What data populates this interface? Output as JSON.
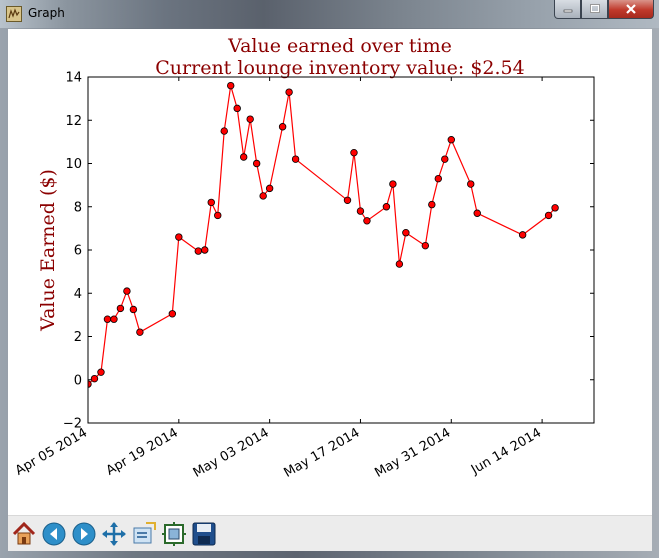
{
  "window": {
    "title": "Graph",
    "app_icon": "matplotlib-figure-icon",
    "buttons": [
      "minimize-icon",
      "maximize-icon",
      "close-icon"
    ]
  },
  "toolbar": {
    "buttons": [
      {
        "name": "home-button",
        "icon": "home-icon"
      },
      {
        "name": "back-button",
        "icon": "arrow-left-icon"
      },
      {
        "name": "forward-button",
        "icon": "arrow-right-icon"
      },
      {
        "name": "pan-button",
        "icon": "move-arrows-icon"
      },
      {
        "name": "zoom-button",
        "icon": "zoom-rect-icon"
      },
      {
        "name": "subplots-button",
        "icon": "subplots-icon"
      },
      {
        "name": "save-button",
        "icon": "floppy-disk-icon"
      }
    ]
  },
  "chart_data": {
    "type": "line",
    "title": "Value earned over time",
    "subtitle": "Current lounge inventory value: $2.54",
    "xlabel": "",
    "ylabel": "Value Earned ($)",
    "title_color": "#8b0000",
    "line_color": "#ff0000",
    "marker_color": "#ff0000",
    "xlim": [
      "2014-04-05",
      "2014-06-22"
    ],
    "ylim": [
      -2,
      14
    ],
    "yticks": [
      -2,
      0,
      2,
      4,
      6,
      8,
      10,
      12,
      14
    ],
    "xticks": [
      "2014-04-05",
      "2014-04-19",
      "2014-05-03",
      "2014-05-17",
      "2014-05-31",
      "2014-06-14"
    ],
    "xtick_labels": [
      "Apr 05 2014",
      "Apr 19 2014",
      "May 03 2014",
      "May 17 2014",
      "May 31 2014",
      "Jun 14 2014"
    ],
    "grid": false,
    "x": [
      "2014-04-05",
      "2014-04-06",
      "2014-04-07",
      "2014-04-08",
      "2014-04-09",
      "2014-04-10",
      "2014-04-11",
      "2014-04-12",
      "2014-04-13",
      "2014-04-18",
      "2014-04-19",
      "2014-04-22",
      "2014-04-23",
      "2014-04-24",
      "2014-04-25",
      "2014-04-26",
      "2014-04-27",
      "2014-04-28",
      "2014-04-29",
      "2014-04-30",
      "2014-05-01",
      "2014-05-02",
      "2014-05-03",
      "2014-05-05",
      "2014-05-06",
      "2014-05-07",
      "2014-05-15",
      "2014-05-16",
      "2014-05-17",
      "2014-05-18",
      "2014-05-21",
      "2014-05-22",
      "2014-05-23",
      "2014-05-24",
      "2014-05-27",
      "2014-05-28",
      "2014-05-29",
      "2014-05-30",
      "2014-05-31",
      "2014-06-03",
      "2014-06-04",
      "2014-06-11",
      "2014-06-15",
      "2014-06-16"
    ],
    "y": [
      -0.2,
      0.05,
      0.35,
      2.8,
      2.8,
      3.3,
      4.1,
      3.25,
      2.2,
      3.05,
      6.6,
      5.95,
      6.0,
      8.2,
      7.6,
      11.5,
      13.6,
      12.55,
      10.3,
      12.05,
      10.0,
      8.5,
      8.85,
      11.7,
      13.3,
      10.2,
      8.3,
      10.5,
      7.8,
      7.35,
      8.0,
      9.05,
      5.35,
      6.8,
      6.2,
      8.1,
      9.3,
      10.2,
      11.1,
      9.05,
      7.7,
      6.7,
      7.6,
      7.95
    ]
  }
}
